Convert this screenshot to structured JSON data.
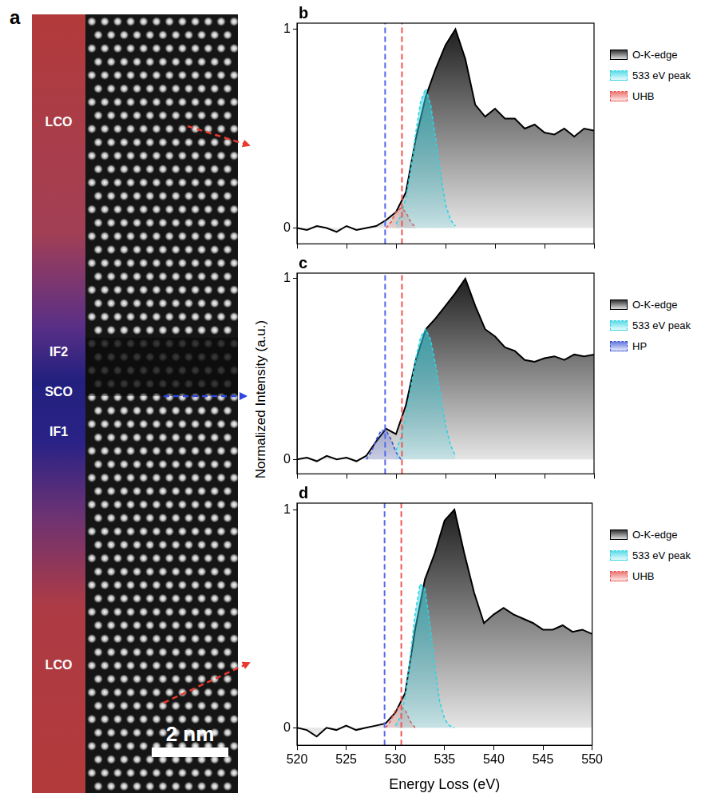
{
  "image_panel": {
    "label": "a",
    "regions": [
      "LCO",
      "IF2",
      "SCO",
      "IF1",
      "LCO"
    ],
    "scale_bar": "2 nm"
  },
  "shared_ylabel": "Normalized Intensity (a.u.)",
  "chart_data": [
    {
      "type": "line",
      "label": "b",
      "legend": "right",
      "tick_labels": "y",
      "grid": false,
      "xlim": [
        520,
        550
      ],
      "xticks": [
        520,
        525,
        530,
        535,
        540,
        545,
        550
      ],
      "ylim": [
        -0.08,
        1.03
      ],
      "yticks": [
        0,
        1
      ],
      "reference_lines": [
        {
          "x": 528.9,
          "color": "#5566ee"
        },
        {
          "x": 530.6,
          "color": "#ee5555"
        }
      ],
      "series": [
        {
          "name": "O-K-edge",
          "color": "#000000",
          "line_style": "solid",
          "x": [
            520,
            521,
            522,
            523,
            524,
            525,
            526,
            527,
            528,
            529,
            530,
            531,
            532,
            533,
            534,
            535,
            536,
            537,
            538,
            539,
            540,
            541,
            542,
            543,
            544,
            545,
            546,
            547,
            548,
            549,
            550
          ],
          "values": [
            0,
            -0.01,
            0.01,
            0,
            -0.02,
            0.01,
            -0.01,
            0,
            0.01,
            0.04,
            0.08,
            0.18,
            0.45,
            0.66,
            0.8,
            0.92,
            1.0,
            0.85,
            0.62,
            0.56,
            0.6,
            0.55,
            0.55,
            0.5,
            0.52,
            0.48,
            0.47,
            0.5,
            0.46,
            0.5,
            0.49
          ]
        },
        {
          "name": "533 eV peak",
          "color": "#2fd3e3",
          "line_style": "dashed",
          "x": [
            530,
            530.5,
            531,
            531.5,
            532,
            532.5,
            533,
            533.5,
            534,
            534.5,
            535,
            535.5,
            536
          ],
          "values": [
            0.02,
            0.06,
            0.15,
            0.3,
            0.48,
            0.64,
            0.7,
            0.62,
            0.45,
            0.27,
            0.12,
            0.04,
            0.01
          ]
        },
        {
          "name": "UHB",
          "color": "#e8524d",
          "line_style": "dashed",
          "x": [
            529,
            529.5,
            530,
            530.5,
            531,
            531.5,
            532
          ],
          "values": [
            0,
            0.03,
            0.08,
            0.1,
            0.08,
            0.03,
            0
          ]
        }
      ]
    },
    {
      "type": "line",
      "label": "c",
      "legend": "right",
      "tick_labels": "y",
      "grid": false,
      "xlim": [
        520,
        550
      ],
      "xticks": [
        520,
        525,
        530,
        535,
        540,
        545,
        550
      ],
      "ylim": [
        -0.08,
        1.03
      ],
      "yticks": [
        0,
        1
      ],
      "reference_lines": [
        {
          "x": 528.9,
          "color": "#5566ee"
        },
        {
          "x": 530.6,
          "color": "#ee5555"
        }
      ],
      "series": [
        {
          "name": "O-K-edge",
          "color": "#000000",
          "line_style": "solid",
          "x": [
            520,
            521,
            522,
            523,
            524,
            525,
            526,
            527,
            528,
            529,
            530,
            531,
            532,
            533,
            534,
            535,
            536,
            537,
            538,
            539,
            540,
            541,
            542,
            543,
            544,
            545,
            546,
            547,
            548,
            549,
            550
          ],
          "values": [
            0,
            0.01,
            -0.01,
            0.02,
            0,
            0.01,
            -0.01,
            0.02,
            0.1,
            0.17,
            0.14,
            0.3,
            0.55,
            0.72,
            0.78,
            0.85,
            0.92,
            1.0,
            0.85,
            0.72,
            0.68,
            0.62,
            0.6,
            0.55,
            0.54,
            0.56,
            0.57,
            0.55,
            0.58,
            0.57,
            0.58
          ]
        },
        {
          "name": "533 eV peak",
          "color": "#2fd3e3",
          "line_style": "dashed",
          "x": [
            530,
            530.5,
            531,
            531.5,
            532,
            532.5,
            533,
            533.5,
            534,
            534.5,
            535,
            535.5,
            536
          ],
          "values": [
            0.05,
            0.12,
            0.24,
            0.4,
            0.56,
            0.68,
            0.72,
            0.66,
            0.52,
            0.35,
            0.19,
            0.08,
            0.02
          ]
        },
        {
          "name": "HP",
          "color": "#3b55d6",
          "line_style": "dashed",
          "x": [
            527,
            527.5,
            528,
            528.5,
            529,
            529.5,
            530,
            530.5
          ],
          "values": [
            0,
            0.04,
            0.11,
            0.16,
            0.16,
            0.11,
            0.04,
            0
          ]
        }
      ]
    },
    {
      "type": "line",
      "label": "d",
      "legend": "right",
      "grid": false,
      "xlabel": "Energy Loss (eV)",
      "xlim": [
        520,
        550
      ],
      "xticks": [
        520,
        525,
        530,
        535,
        540,
        545,
        550
      ],
      "ylim": [
        -0.08,
        1.03
      ],
      "yticks": [
        0,
        1
      ],
      "reference_lines": [
        {
          "x": 528.9,
          "color": "#5566ee"
        },
        {
          "x": 530.6,
          "color": "#ee5555"
        }
      ],
      "series": [
        {
          "name": "O-K-edge",
          "color": "#000000",
          "line_style": "solid",
          "x": [
            520,
            521,
            522,
            523,
            524,
            525,
            526,
            527,
            528,
            529,
            530,
            531,
            532,
            533,
            534,
            535,
            536,
            537,
            538,
            539,
            540,
            541,
            542,
            543,
            544,
            545,
            546,
            547,
            548,
            549,
            550
          ],
          "values": [
            0,
            -0.01,
            -0.04,
            0,
            -0.01,
            0.01,
            -0.01,
            0,
            0.01,
            0.02,
            0.07,
            0.16,
            0.45,
            0.68,
            0.8,
            0.95,
            1.0,
            0.8,
            0.62,
            0.48,
            0.52,
            0.55,
            0.52,
            0.5,
            0.48,
            0.45,
            0.45,
            0.47,
            0.44,
            0.45,
            0.43
          ]
        },
        {
          "name": "533 eV peak",
          "color": "#2fd3e3",
          "line_style": "dashed",
          "x": [
            530,
            530.5,
            531,
            531.5,
            532,
            532.5,
            533,
            533.5,
            534,
            534.5,
            535,
            535.5,
            536
          ],
          "values": [
            0.01,
            0.05,
            0.14,
            0.32,
            0.52,
            0.66,
            0.64,
            0.48,
            0.28,
            0.12,
            0.04,
            0.01,
            0
          ]
        },
        {
          "name": "UHB",
          "color": "#e8524d",
          "line_style": "dashed",
          "x": [
            529,
            529.5,
            530,
            530.5,
            531,
            531.5,
            532
          ],
          "values": [
            0,
            0.03,
            0.08,
            0.1,
            0.08,
            0.03,
            0
          ]
        }
      ]
    }
  ]
}
